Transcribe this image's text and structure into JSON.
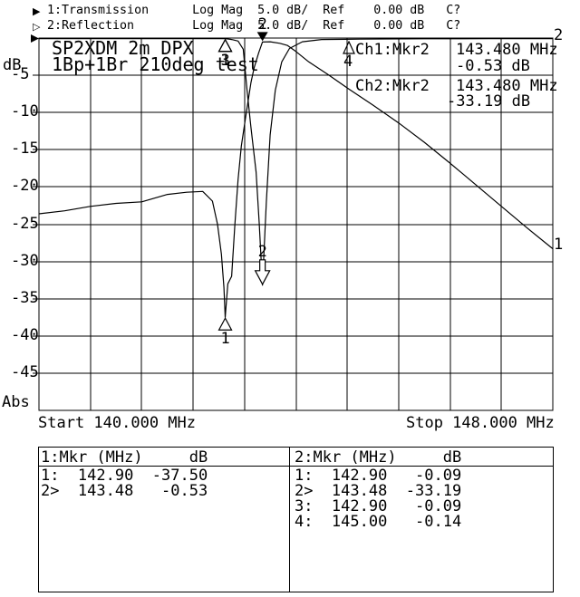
{
  "colors": {
    "fg": "#000000",
    "bg": "#ffffff"
  },
  "header": {
    "ch1_arrow": "▶",
    "ch1_line": "1:Transmission      Log Mag  5.0 dB/  Ref    0.00 dB   C?",
    "ch2_arrow": "▷",
    "ch2_line": "2:Reflection        Log Mag  5.0 dB/  Ref    0.00 dB   C?"
  },
  "plot": {
    "title_line1": "SP2XDM 2m DPX",
    "title_line2": "1Bp+1Br 210deg test",
    "y_axis_unit": "dB",
    "y_axis_bottom_label": "Abs",
    "y_tick_labels": [
      "-5",
      "-10",
      "-15",
      "-20",
      "-25",
      "-30",
      "-35",
      "-40",
      "-45"
    ],
    "x_start_label": "Start 140.000 MHz",
    "x_stop_label": "Stop 148.000 MHz",
    "trace1_id": "1",
    "trace2_id": "2",
    "annotations": {
      "ch1": {
        "delta_ref": "4",
        "label": "Ch1:Mkr2",
        "freq": "143.480 MHz",
        "value": "-0.53 dB"
      },
      "ch2": {
        "label": "Ch2:Mkr2",
        "freq": "143.480 MHz",
        "value": "-33.19 dB"
      }
    }
  },
  "chart_data": {
    "type": "line",
    "title": "SP2XDM 2m DPX 1Bp+1Br 210deg test",
    "xlabel": "MHz",
    "ylabel": "dB",
    "x_range_mhz": [
      140,
      148
    ],
    "y_range_db": [
      -50,
      0
    ],
    "x_divisions": 10,
    "y_divisions": 10,
    "db_per_div": 5.0,
    "ref_db": 0.0,
    "grid": true,
    "series": [
      {
        "name": "Transmission",
        "points": [
          [
            140,
            -23.6
          ],
          [
            140.4,
            -23.2
          ],
          [
            140.8,
            -22.6
          ],
          [
            141.2,
            -22.2
          ],
          [
            141.6,
            -22.0
          ],
          [
            142.0,
            -21.0
          ],
          [
            142.3,
            -20.7
          ],
          [
            142.55,
            -20.6
          ],
          [
            142.7,
            -21.9
          ],
          [
            142.78,
            -25
          ],
          [
            142.84,
            -29
          ],
          [
            142.88,
            -33.5
          ],
          [
            142.9,
            -37.5
          ],
          [
            142.94,
            -33
          ],
          [
            143.0,
            -32
          ],
          [
            143.05,
            -25
          ],
          [
            143.1,
            -19
          ],
          [
            143.15,
            -14.5
          ],
          [
            143.22,
            -10.5
          ],
          [
            143.3,
            -6
          ],
          [
            143.35,
            -4
          ],
          [
            143.42,
            -2
          ],
          [
            143.48,
            -0.53
          ],
          [
            143.6,
            -0.5
          ],
          [
            143.75,
            -0.7
          ],
          [
            143.87,
            -1.0
          ],
          [
            144.0,
            -1.8
          ],
          [
            144.2,
            -3.2
          ],
          [
            144.5,
            -4.9
          ],
          [
            144.8,
            -6.7
          ],
          [
            145.2,
            -9.0
          ],
          [
            145.6,
            -11.4
          ],
          [
            146.0,
            -14.0
          ],
          [
            146.4,
            -16.8
          ],
          [
            146.8,
            -19.7
          ],
          [
            147.2,
            -22.6
          ],
          [
            147.6,
            -25.5
          ],
          [
            148,
            -28.3
          ]
        ]
      },
      {
        "name": "Reflection",
        "points": [
          [
            140,
            -0.07
          ],
          [
            141,
            -0.08
          ],
          [
            142,
            -0.08
          ],
          [
            142.6,
            -0.09
          ],
          [
            142.9,
            -0.09
          ],
          [
            143.0,
            -0.2
          ],
          [
            143.1,
            -0.4
          ],
          [
            143.18,
            -1.5
          ],
          [
            143.24,
            -7
          ],
          [
            143.3,
            -12
          ],
          [
            143.38,
            -18
          ],
          [
            143.43,
            -25
          ],
          [
            143.48,
            -33.19
          ],
          [
            143.54,
            -22
          ],
          [
            143.6,
            -13
          ],
          [
            143.68,
            -7
          ],
          [
            143.78,
            -3.2
          ],
          [
            143.9,
            -1.4
          ],
          [
            144.1,
            -0.5
          ],
          [
            144.4,
            -0.2
          ],
          [
            145,
            -0.14
          ],
          [
            146,
            -0.1
          ],
          [
            147,
            -0.09
          ],
          [
            148,
            -0.08
          ]
        ]
      }
    ],
    "markers": [
      {
        "trace": "1",
        "label": "1",
        "mhz": 142.9,
        "db": -37.5,
        "symbol": "triangle-up",
        "filled": false
      },
      {
        "trace": "1",
        "label": "2",
        "mhz": 143.48,
        "db": -0.53,
        "symbol": "arrow-down",
        "filled": true
      },
      {
        "trace": "2",
        "label": "1",
        "mhz": 142.9,
        "db": -0.09,
        "symbol": "triangle-up",
        "filled": false
      },
      {
        "trace": "2",
        "label": "3",
        "mhz": 142.9,
        "db": -0.09,
        "symbol": "triangle-up",
        "filled": false
      },
      {
        "trace": "2",
        "label": "2",
        "mhz": 143.48,
        "db": -33.19,
        "symbol": "arrow-down",
        "filled": false
      }
    ]
  },
  "marker_tables": {
    "left": {
      "header": "1:Mkr (MHz)     dB",
      "rows": [
        {
          "n": "1:",
          "mhz": "142.90",
          "db": "-37.50"
        },
        {
          "n": "2>",
          "mhz": "143.48",
          "db": "-0.53"
        }
      ]
    },
    "right": {
      "header": "2:Mkr (MHz)     dB",
      "rows": [
        {
          "n": "1:",
          "mhz": "142.90",
          "db": "-0.09"
        },
        {
          "n": "2>",
          "mhz": "143.48",
          "db": "-33.19"
        },
        {
          "n": "3:",
          "mhz": "142.90",
          "db": "-0.09"
        },
        {
          "n": "4:",
          "mhz": "145.00",
          "db": "-0.14"
        }
      ]
    }
  }
}
